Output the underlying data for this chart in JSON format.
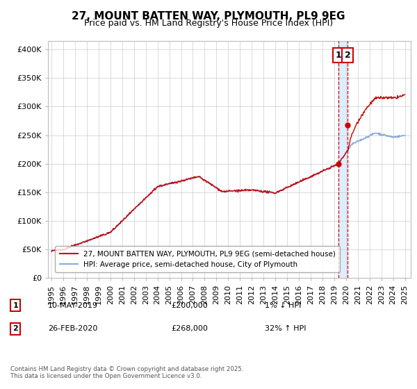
{
  "title": "27, MOUNT BATTEN WAY, PLYMOUTH, PL9 9EG",
  "subtitle": "Price paid vs. HM Land Registry's House Price Index (HPI)",
  "yticks": [
    0,
    50000,
    100000,
    150000,
    200000,
    250000,
    300000,
    350000,
    400000
  ],
  "ytick_labels": [
    "£0",
    "£50K",
    "£100K",
    "£150K",
    "£200K",
    "£250K",
    "£300K",
    "£350K",
    "£400K"
  ],
  "ylim": [
    0,
    415000
  ],
  "xlim_start": 1994.7,
  "xlim_end": 2025.5,
  "xtick_years": [
    1995,
    1996,
    1997,
    1998,
    1999,
    2000,
    2001,
    2002,
    2003,
    2004,
    2005,
    2006,
    2007,
    2008,
    2009,
    2010,
    2011,
    2012,
    2013,
    2014,
    2015,
    2016,
    2017,
    2018,
    2019,
    2020,
    2021,
    2022,
    2023,
    2024,
    2025
  ],
  "sale1_x": 2019.36,
  "sale1_y": 200000,
  "sale1_label": "1",
  "sale2_x": 2020.15,
  "sale2_y": 268000,
  "sale2_label": "2",
  "vline_color": "#cc0000",
  "shade_color": "#ddeeff",
  "hpi_line_color": "#88aadd",
  "price_line_color": "#cc0000",
  "legend_entry1": "27, MOUNT BATTEN WAY, PLYMOUTH, PL9 9EG (semi-detached house)",
  "legend_entry2": "HPI: Average price, semi-detached house, City of Plymouth",
  "annotation1_label": "1",
  "annotation1_date": "10-MAY-2019",
  "annotation1_price": "£200,000",
  "annotation1_hpi": "1% ↓ HPI",
  "annotation2_label": "2",
  "annotation2_date": "26-FEB-2020",
  "annotation2_price": "£268,000",
  "annotation2_hpi": "32% ↑ HPI",
  "footnote": "Contains HM Land Registry data © Crown copyright and database right 2025.\nThis data is licensed under the Open Government Licence v3.0.",
  "background_color": "#ffffff",
  "grid_color": "#cccccc",
  "title_fontsize": 11,
  "subtitle_fontsize": 9,
  "axis_fontsize": 8
}
